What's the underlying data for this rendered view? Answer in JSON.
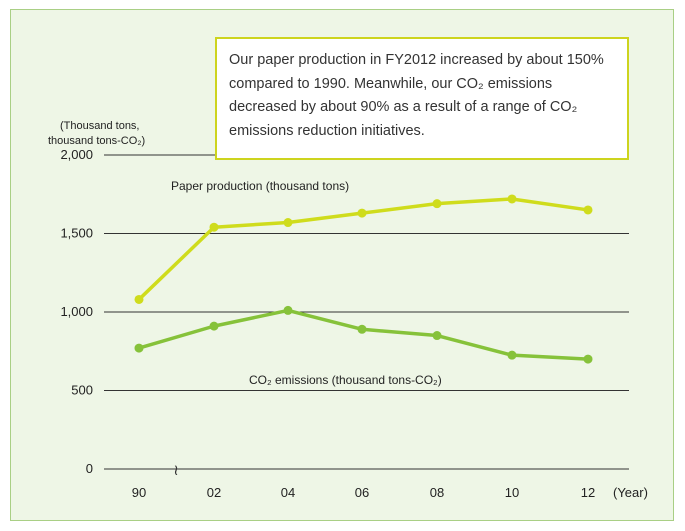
{
  "chart_data": {
    "type": "line",
    "x": [
      "90",
      "02",
      "04",
      "06",
      "08",
      "10",
      "12"
    ],
    "x_unit": "(Year)",
    "y_unit_lines": [
      "(Thousand tons,",
      "thousand tons-CO₂)"
    ],
    "yticks": [
      0,
      500,
      1000,
      1500,
      2000
    ],
    "ytick_labels": [
      "0",
      "500",
      "1,000",
      "1,500",
      "2,000"
    ],
    "ylim": [
      0,
      2000
    ],
    "axis_break": "≀",
    "series": [
      {
        "name": "Paper production (thousand tons)",
        "color": "#cfdc1c",
        "values": [
          1080,
          1540,
          1570,
          1630,
          1690,
          1720,
          1650
        ]
      },
      {
        "name": "CO₂ emissions (thousand tons-CO₂)",
        "color": "#86c23a",
        "values": [
          770,
          910,
          1010,
          890,
          850,
          725,
          700
        ]
      }
    ],
    "annotation": "Our paper production in FY2012 increased by about 150% compared to 1990. Meanwhile, our CO₂ emissions decreased by about 90% as a result of a range of CO₂ emissions reduction initiatives.",
    "grid": "horizontal"
  }
}
